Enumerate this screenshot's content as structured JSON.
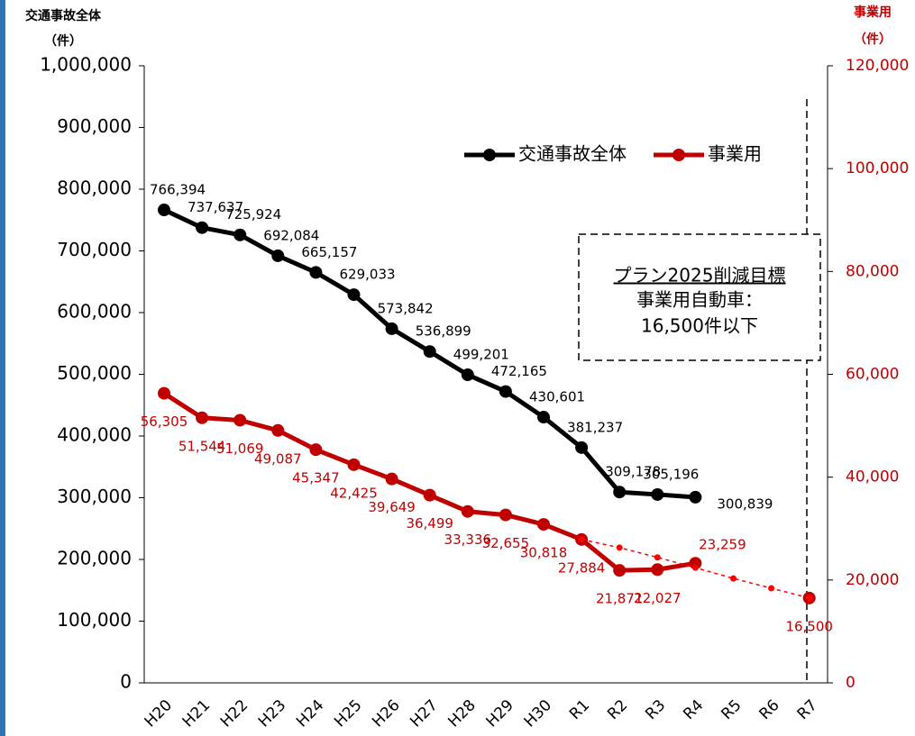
{
  "chart_data": {
    "type": "line",
    "y_label": "交通事故全体",
    "y_unit": "（件）",
    "y2_label": "事業用",
    "y2_unit": "（件）",
    "categories": [
      "H20",
      "H21",
      "H22",
      "H23",
      "H24",
      "H25",
      "H26",
      "H27",
      "H28",
      "H29",
      "H30",
      "R1",
      "R2",
      "R3",
      "R4",
      "R5",
      "R6",
      "R7"
    ],
    "ylim": [
      0,
      1000000
    ],
    "yticks": [
      0,
      {
        "value": 100000,
        "label": "100,000"
      },
      {
        "value": 200000,
        "label": "200,000"
      },
      {
        "value": 300000,
        "label": "300,000"
      },
      {
        "value": 400000,
        "label": "400,000"
      },
      {
        "value": 500000,
        "label": "500,000"
      },
      {
        "value": 600000,
        "label": "600,000"
      },
      {
        "value": 700000,
        "label": "700,000"
      },
      {
        "value": 800000,
        "label": "800,000"
      },
      {
        "value": 900000,
        "label": "900,000"
      },
      {
        "value": 1000000,
        "label": "1,000,000"
      }
    ],
    "y2lim": [
      0,
      120000
    ],
    "y2ticks": [
      0,
      {
        "value": 20000,
        "label": "20,000"
      },
      {
        "value": 40000,
        "label": "40,000"
      },
      {
        "value": 60000,
        "label": "60,000"
      },
      {
        "value": 80000,
        "label": "80,000"
      },
      {
        "value": 100000,
        "label": "100,000"
      },
      {
        "value": 120000,
        "label": "120,000"
      }
    ],
    "series": [
      {
        "name": "交通事故全体",
        "color": "#000000",
        "values": [
          766394,
          737637,
          725924,
          692084,
          665157,
          629033,
          573842,
          536899,
          499201,
          472165,
          430601,
          381237,
          309178,
          305196,
          300839,
          null,
          null,
          null
        ],
        "value_labels": [
          "766,394",
          "737,637",
          "725,924",
          "692,084",
          "665,157",
          "629,033",
          "573,842",
          "536,899",
          "499,201",
          "472,165",
          "430,601",
          "381,237",
          "309,178",
          "305,196",
          "300,839",
          null,
          null,
          null
        ]
      },
      {
        "name": "事業用",
        "color": "#c00000",
        "axis": "y2",
        "values": [
          56305,
          51544,
          51069,
          49087,
          45347,
          42425,
          39649,
          36499,
          33336,
          32655,
          30818,
          27884,
          21871,
          22027,
          23259,
          null,
          null,
          16500
        ],
        "value_labels": [
          "56,305",
          "51,544",
          "51,069",
          "49,087",
          "45,347",
          "42,425",
          "39,649",
          "36,499",
          "33,336",
          "32,655",
          "30,818",
          "27,884",
          "21,871",
          "22,027",
          "23,259",
          null,
          null,
          "16,500"
        ]
      },
      {
        "color": "#ff0000",
        "axis": "y2",
        "dashed": true,
        "values": [
          null,
          null,
          null,
          null,
          null,
          null,
          null,
          null,
          null,
          null,
          null,
          27884,
          26300,
          24400,
          22400,
          20300,
          18400,
          16500
        ]
      }
    ],
    "annotation": {
      "title": "プラン2025削減目標",
      "lines": [
        "事業用自動車：",
        "16,500件以下"
      ]
    }
  }
}
